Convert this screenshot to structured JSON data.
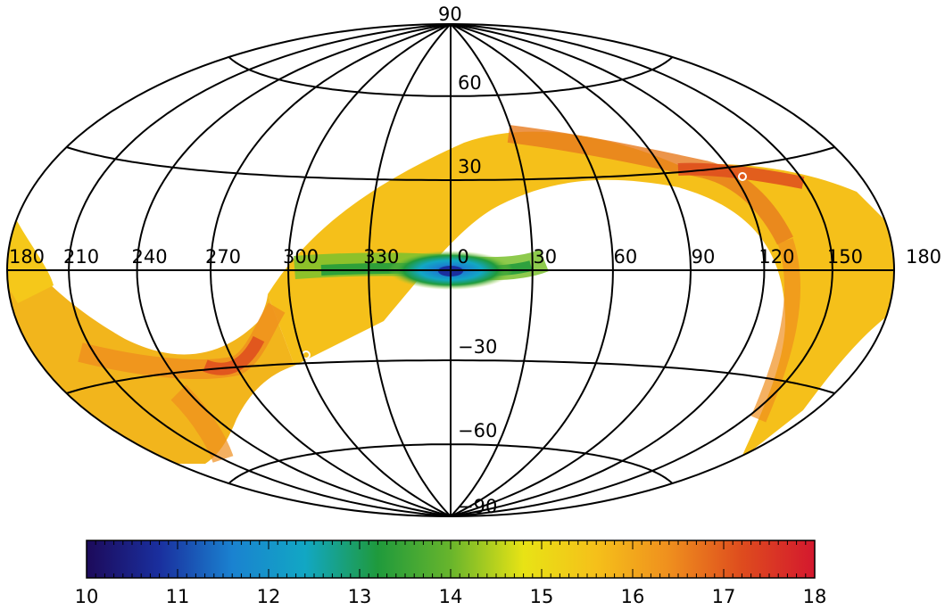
{
  "chart_data": {
    "type": "heatmap",
    "projection": "Aitoff/Hammer (equal-area all-sky map)",
    "coordinate_system": "galactic",
    "longitude_labels": [
      "180",
      "210",
      "240",
      "270",
      "300",
      "330",
      "0",
      "30",
      "60",
      "90",
      "120",
      "150",
      "180"
    ],
    "latitude_labels": [
      "90",
      "60",
      "30",
      "-30",
      "-60",
      "-90"
    ],
    "grid": true,
    "colorbar": {
      "min": 10,
      "max": 18,
      "ticks": [
        "10",
        "11",
        "12",
        "13",
        "14",
        "15",
        "16",
        "17",
        "18"
      ],
      "colormap": [
        "#1c0a5a",
        "#1a2f9e",
        "#1a82d0",
        "#12a7c4",
        "#1f9a3c",
        "#68b52c",
        "#e8e315",
        "#f5c01a",
        "#ef8f1e",
        "#de4c1e",
        "#d4182e"
      ]
    },
    "footprint": {
      "description": "great-circle band crossing the galactic plane near l=0 and l=180",
      "centerline": [
        {
          "l": 180,
          "b": 8
        },
        {
          "l": 165,
          "b": 0
        },
        {
          "l": 140,
          "b": -15
        },
        {
          "l": 120,
          "b": -30
        },
        {
          "l": 100,
          "b": -55
        },
        {
          "l": 250,
          "b": -40
        },
        {
          "l": 290,
          "b": -25
        },
        {
          "l": 320,
          "b": -8
        },
        {
          "l": 0,
          "b": 2
        },
        {
          "l": 30,
          "b": 12
        },
        {
          "l": 60,
          "b": 28
        },
        {
          "l": 100,
          "b": 28
        },
        {
          "l": 130,
          "b": 12
        },
        {
          "l": 175,
          "b": 8
        }
      ],
      "typical_value": 16,
      "value_near_galactic_center": 12
    }
  }
}
